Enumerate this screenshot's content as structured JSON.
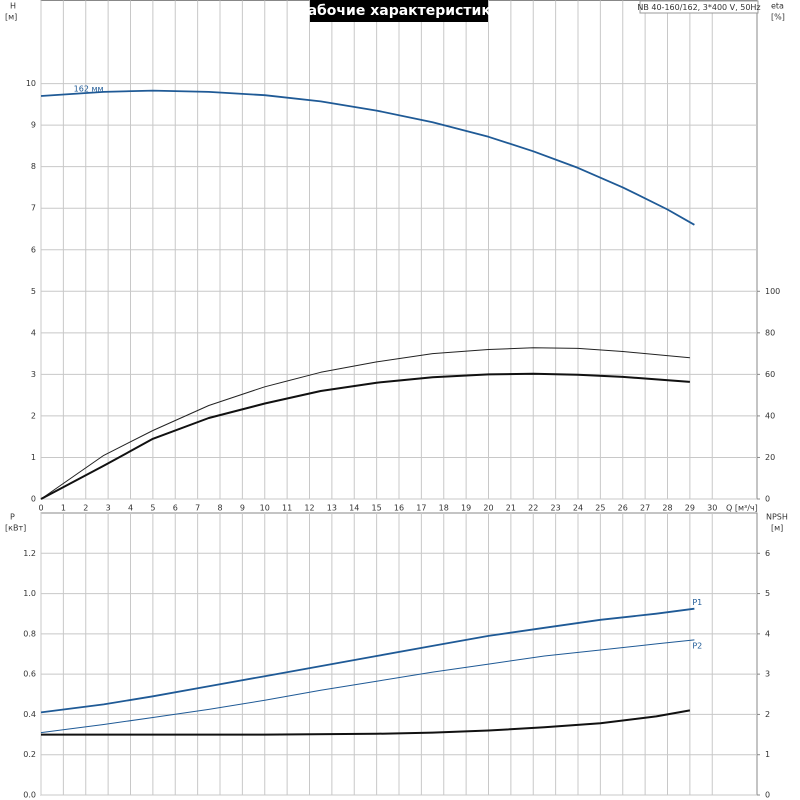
{
  "chart_data": [
    {
      "type": "line",
      "title": "Рабочие характеристики",
      "subtitle": "NB 40-160/162, 3*400 V, 50Hz",
      "ylabel": "H",
      "yunit": "[м]",
      "y2label": "eta",
      "y2unit": "[%]",
      "xlabel": "Q [м³/ч]",
      "xlim": [
        0,
        32
      ],
      "ylim": [
        0,
        12
      ],
      "y2lim": [
        0,
        240
      ],
      "xticks": [
        0,
        1,
        2,
        3,
        4,
        5,
        6,
        7,
        8,
        9,
        10,
        11,
        12,
        13,
        14,
        15,
        16,
        17,
        18,
        19,
        20,
        21,
        22,
        23,
        24,
        25,
        26,
        27,
        28,
        29,
        30
      ],
      "yticks": [
        0,
        1,
        2,
        3,
        4,
        5,
        6,
        7,
        8,
        9,
        10
      ],
      "y2ticks": [
        0,
        20,
        40,
        60,
        80,
        100
      ],
      "grid": true,
      "series": [
        {
          "label": "162 мм",
          "color": "#1f5a96",
          "line_width": 1.8,
          "x": [
            0,
            2.8,
            5,
            7.5,
            10,
            12.5,
            15,
            17.5,
            20,
            22,
            24,
            26,
            28,
            29.2
          ],
          "values": [
            9.7,
            9.8,
            9.83,
            9.8,
            9.72,
            9.57,
            9.35,
            9.07,
            8.72,
            8.37,
            7.97,
            7.5,
            6.97,
            6.6
          ]
        },
        {
          "color": "#222222",
          "line_width": 1,
          "axis": "y2",
          "x": [
            0,
            2.8,
            5,
            7.5,
            10,
            12.5,
            15,
            17.5,
            20,
            22,
            24,
            26,
            29
          ],
          "values": [
            0,
            21,
            33,
            45,
            54,
            61,
            66,
            70,
            72,
            72.8,
            72.5,
            71,
            68
          ]
        },
        {
          "color": "#111111",
          "line_width": 2,
          "axis": "y2",
          "x": [
            0,
            2.8,
            5,
            7.5,
            10,
            12.5,
            15,
            17.5,
            20,
            22,
            24,
            26,
            29
          ],
          "values": [
            0,
            16,
            29,
            39,
            46,
            52,
            56,
            58.6,
            60,
            60.3,
            59.8,
            58.8,
            56.4
          ]
        }
      ]
    },
    {
      "type": "line",
      "ylabel": "P",
      "yunit": "[кВт]",
      "y2label": "NPSH",
      "y2unit": "[м]",
      "xlim": [
        0,
        32
      ],
      "ylim": [
        0,
        1.4
      ],
      "y2lim": [
        0,
        7
      ],
      "yticks": [
        {
          "value": 0,
          "label": "0.0"
        },
        0.2,
        0.4,
        0.6,
        0.8,
        {
          "value": 1,
          "label": "1.0"
        },
        1.2
      ],
      "y2ticks": [
        0,
        1,
        2,
        3,
        4,
        5,
        6
      ],
      "grid": true,
      "series": [
        {
          "label": "P1",
          "color": "#1f5a96",
          "line_width": 1.8,
          "x": [
            0,
            2.8,
            5,
            7.5,
            10,
            12.5,
            15,
            17.5,
            20,
            22.5,
            25,
            27.5,
            29.2
          ],
          "values": [
            0.41,
            0.45,
            0.49,
            0.54,
            0.59,
            0.64,
            0.69,
            0.74,
            0.79,
            0.83,
            0.87,
            0.9,
            0.925
          ]
        },
        {
          "label": "P2",
          "color": "#1f5a96",
          "line_width": 1,
          "x": [
            0,
            2.8,
            5,
            7.5,
            10,
            12.5,
            15,
            17.5,
            20,
            22.5,
            25,
            27.5,
            29.2
          ],
          "values": [
            0.31,
            0.35,
            0.385,
            0.425,
            0.47,
            0.52,
            0.565,
            0.61,
            0.65,
            0.69,
            0.72,
            0.75,
            0.77
          ]
        },
        {
          "color": "#111111",
          "line_width": 2,
          "axis": "y2",
          "x": [
            0,
            2.8,
            5,
            10,
            15,
            17.5,
            20,
            22.5,
            25,
            27.5,
            29
          ],
          "values": [
            1.5,
            1.5,
            1.5,
            1.5,
            1.52,
            1.55,
            1.6,
            1.68,
            1.78,
            1.95,
            2.1
          ]
        }
      ]
    }
  ]
}
